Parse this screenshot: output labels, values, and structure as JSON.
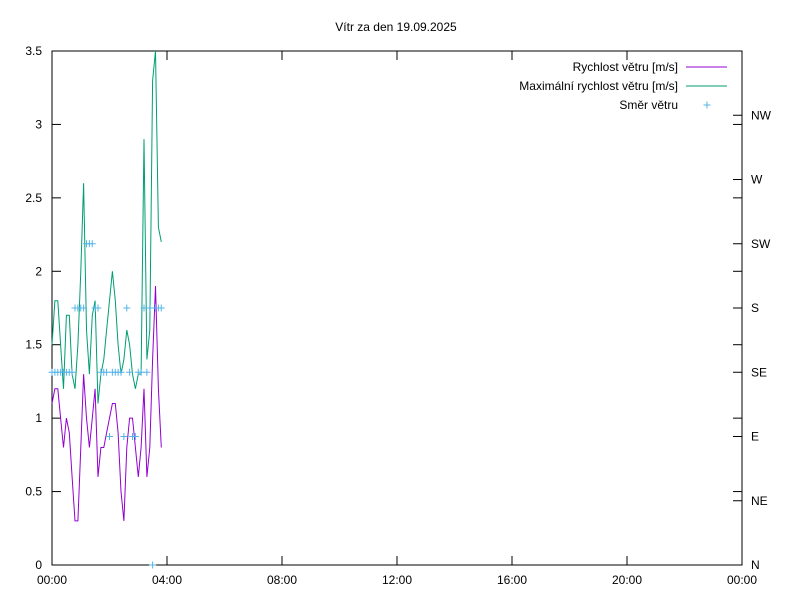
{
  "chart_data": {
    "type": "line",
    "title": "Vítr za den 19.09.2025",
    "xlabel": "",
    "ylabel": "",
    "x_ticks": [
      "00:00",
      "04:00",
      "08:00",
      "12:00",
      "16:00",
      "20:00",
      "00:00"
    ],
    "x_range_hours": [
      0,
      24
    ],
    "ylim": [
      0,
      3.5
    ],
    "y_ticks": [
      "0",
      "0.5",
      "1",
      "1.5",
      "2",
      "2.5",
      "3",
      "3.5"
    ],
    "y2_ticks": [
      "N",
      "NE",
      "E",
      "SE",
      "S",
      "SW",
      "W",
      "NW"
    ],
    "y2lim": [
      0,
      360
    ],
    "grid": false,
    "legend_position": "top-right",
    "series": [
      {
        "name": "Rychlost větru [m/s]",
        "color": "#9400d3",
        "axis": "y1",
        "style": "line",
        "x": [
          0.0,
          0.1,
          0.2,
          0.3,
          0.4,
          0.5,
          0.6,
          0.7,
          0.8,
          0.9,
          1.0,
          1.1,
          1.2,
          1.3,
          1.4,
          1.5,
          1.6,
          1.7,
          1.8,
          1.9,
          2.0,
          2.1,
          2.2,
          2.3,
          2.4,
          2.5,
          2.6,
          2.7,
          2.8,
          2.9,
          3.0,
          3.1,
          3.2,
          3.3,
          3.4,
          3.5,
          3.6,
          3.7,
          3.8
        ],
        "values": [
          1.1,
          1.2,
          1.2,
          1.0,
          0.8,
          1.0,
          0.9,
          0.6,
          0.3,
          0.3,
          0.8,
          1.3,
          1.0,
          0.8,
          1.0,
          1.2,
          0.6,
          0.8,
          0.8,
          0.9,
          1.0,
          1.1,
          1.1,
          0.9,
          0.5,
          0.3,
          0.8,
          1.0,
          1.0,
          0.8,
          0.6,
          0.8,
          1.2,
          0.6,
          0.8,
          1.4,
          1.9,
          1.2,
          0.8
        ]
      },
      {
        "name": "Maximální rychlost větru [m/s]",
        "color": "#009e73",
        "axis": "y1",
        "style": "line",
        "x": [
          0.0,
          0.1,
          0.2,
          0.3,
          0.4,
          0.5,
          0.6,
          0.7,
          0.8,
          0.9,
          1.0,
          1.1,
          1.2,
          1.3,
          1.4,
          1.5,
          1.6,
          1.7,
          1.8,
          1.9,
          2.0,
          2.1,
          2.2,
          2.3,
          2.4,
          2.5,
          2.6,
          2.7,
          2.8,
          2.9,
          3.0,
          3.1,
          3.2,
          3.3,
          3.4,
          3.5,
          3.6,
          3.7,
          3.8
        ],
        "values": [
          1.5,
          1.8,
          1.8,
          1.5,
          1.2,
          1.7,
          1.7,
          1.3,
          1.2,
          1.5,
          2.0,
          2.6,
          1.6,
          1.3,
          1.7,
          1.8,
          1.1,
          1.3,
          1.4,
          1.6,
          1.8,
          2.0,
          1.8,
          1.5,
          1.3,
          1.4,
          1.6,
          1.5,
          1.3,
          1.2,
          1.3,
          1.3,
          2.9,
          1.4,
          1.6,
          3.3,
          3.5,
          2.3,
          2.2
        ]
      },
      {
        "name": "Směr větru",
        "color": "#56b4e9",
        "axis": "y2",
        "style": "points",
        "x": [
          0.0,
          0.1,
          0.2,
          0.3,
          0.4,
          0.5,
          0.6,
          0.7,
          0.8,
          0.9,
          1.0,
          1.1,
          1.2,
          1.3,
          1.4,
          1.5,
          1.6,
          1.7,
          1.8,
          1.9,
          2.0,
          2.1,
          2.2,
          2.3,
          2.4,
          2.5,
          2.6,
          2.7,
          2.8,
          2.9,
          3.0,
          3.1,
          3.2,
          3.3,
          3.4,
          3.5,
          3.6,
          3.7,
          3.8
        ],
        "values": [
          135,
          135,
          135,
          135,
          135,
          135,
          135,
          135,
          180,
          180,
          180,
          180,
          225,
          225,
          225,
          180,
          180,
          135,
          135,
          135,
          90,
          135,
          135,
          135,
          135,
          90,
          180,
          135,
          90,
          90,
          135,
          135,
          180,
          135,
          180,
          0,
          180,
          180,
          180
        ]
      }
    ]
  }
}
